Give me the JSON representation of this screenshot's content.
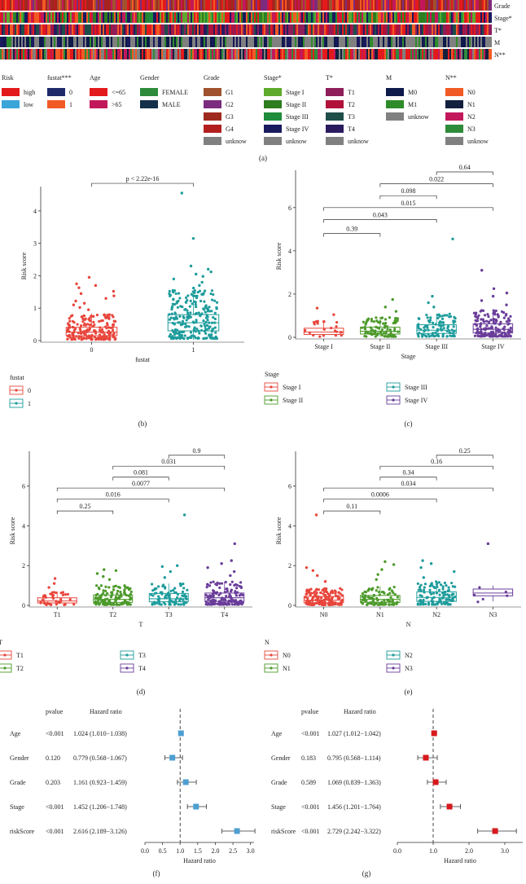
{
  "colors": {
    "grid": "#333333",
    "red": "#E8463C",
    "green": "#4C9A2A",
    "teal": "#1F9C9C",
    "purple": "#6A3D9A",
    "forest_blue": "#4E9FD1",
    "forest_red": "#D7191C"
  },
  "panel_a": {
    "label": "(a)",
    "tracks": [
      "Grade",
      "Stage*",
      "T*",
      "M",
      "N**"
    ],
    "legend": [
      {
        "title": "Risk",
        "items": [
          {
            "label": "high",
            "color": "#E31A1C"
          },
          {
            "label": "low",
            "color": "#3AA5D8"
          }
        ]
      },
      {
        "title": "fustat***",
        "items": [
          {
            "label": "0",
            "color": "#1F2A6B"
          },
          {
            "label": "1",
            "color": "#F15A24"
          }
        ]
      },
      {
        "title": "Age",
        "items": [
          {
            "label": "<=65",
            "color": "#E31A1C"
          },
          {
            "label": ">65",
            "color": "#C2185B"
          }
        ]
      },
      {
        "title": "Gender",
        "items": [
          {
            "label": "FEMALE",
            "color": "#2E8B3A"
          },
          {
            "label": "MALE",
            "color": "#14304A"
          }
        ]
      },
      {
        "title": "Grade",
        "items": [
          {
            "label": "G1",
            "color": "#A0522D"
          },
          {
            "label": "G2",
            "color": "#7B2C7E"
          },
          {
            "label": "G3",
            "color": "#9E2A1E"
          },
          {
            "label": "G4",
            "color": "#B21E1E"
          },
          {
            "label": "unknow",
            "color": "#808080"
          }
        ]
      },
      {
        "title": "Stage*",
        "items": [
          {
            "label": "Stage I",
            "color": "#5DAA2C"
          },
          {
            "label": "Stage II",
            "color": "#2E7D1E"
          },
          {
            "label": "Stage III",
            "color": "#1E8C3A"
          },
          {
            "label": "Stage IV",
            "color": "#1A1A5E"
          },
          {
            "label": "unknow",
            "color": "#808080"
          }
        ]
      },
      {
        "title": "T*",
        "items": [
          {
            "label": "T1",
            "color": "#8E1E5A"
          },
          {
            "label": "T2",
            "color": "#B0123A"
          },
          {
            "label": "T3",
            "color": "#1E4E4A"
          },
          {
            "label": "T4",
            "color": "#2A1A5E"
          },
          {
            "label": "unknow",
            "color": "#808080"
          }
        ]
      },
      {
        "title": "M",
        "items": [
          {
            "label": "M0",
            "color": "#0E1A4A"
          },
          {
            "label": "M1",
            "color": "#2E8B2A"
          },
          {
            "label": "unknow",
            "color": "#808080"
          }
        ]
      },
      {
        "title": "N**",
        "items": [
          {
            "label": "N0",
            "color": "#F15A24"
          },
          {
            "label": "N1",
            "color": "#12203E"
          },
          {
            "label": "N2",
            "color": "#C2185B"
          },
          {
            "label": "N3",
            "color": "#2E8B3A"
          },
          {
            "label": "unknow",
            "color": "#808080"
          }
        ]
      }
    ]
  },
  "chart_data": [
    {
      "panel": "(b)",
      "type": "box",
      "xlabel": "fustat",
      "ylabel": "Risk score",
      "ylim": [
        0,
        4.6
      ],
      "yticks": [
        0,
        1,
        2,
        3,
        4
      ],
      "categories": [
        "0",
        "1"
      ],
      "colors": [
        "#E8463C",
        "#1F9C9C"
      ],
      "box_stats": [
        {
          "min": 0.02,
          "q1": 0.15,
          "median": 0.26,
          "q3": 0.41,
          "max": 0.83
        },
        {
          "min": 0.02,
          "q1": 0.3,
          "median": 0.55,
          "q3": 0.8,
          "max": 1.55
        }
      ],
      "outliers": [
        [
          0.95,
          1.02,
          1.1,
          1.15,
          1.22,
          1.3,
          1.38,
          1.45,
          1.52,
          1.63,
          1.7,
          1.75,
          1.95
        ],
        [
          1.62,
          1.7,
          1.8,
          1.9,
          1.98,
          2.05,
          2.12,
          2.2,
          2.3,
          3.15,
          4.55
        ]
      ],
      "n_points": [
        200,
        240
      ],
      "comparisons": [
        {
          "from": 0,
          "to": 1,
          "label": "p < 2.22e-16",
          "y": 4.85
        }
      ],
      "legend_title": "fustat",
      "legend": [
        "0",
        "1"
      ]
    },
    {
      "panel": "(c)",
      "type": "box",
      "xlabel": "Stage",
      "ylabel": "Risk score",
      "ylim": [
        0,
        7.5
      ],
      "yticks": [
        0,
        2,
        4,
        6
      ],
      "categories": [
        "Stage I",
        "Stage II",
        "Stage III",
        "Stage IV"
      ],
      "colors": [
        "#E8463C",
        "#4C9A2A",
        "#1F9C9C",
        "#6A3D9A"
      ],
      "box_stats": [
        {
          "min": 0.02,
          "q1": 0.13,
          "median": 0.24,
          "q3": 0.42,
          "max": 0.75
        },
        {
          "min": 0.02,
          "q1": 0.15,
          "median": 0.28,
          "q3": 0.47,
          "max": 0.95
        },
        {
          "min": 0.02,
          "q1": 0.18,
          "median": 0.33,
          "q3": 0.58,
          "max": 1.1
        },
        {
          "min": 0.02,
          "q1": 0.2,
          "median": 0.37,
          "q3": 0.62,
          "max": 1.25
        }
      ],
      "outliers": [
        [
          1.05,
          1.35
        ],
        [
          1.2,
          1.4,
          1.75
        ],
        [
          1.4,
          1.6,
          1.9,
          4.55
        ],
        [
          1.5,
          1.7,
          1.9,
          2.05,
          2.25,
          3.1
        ]
      ],
      "n_points": [
        22,
        90,
        100,
        150
      ],
      "comparisons": [
        {
          "from": 0,
          "to": 1,
          "label": "0.39",
          "y": 4.8
        },
        {
          "from": 0,
          "to": 2,
          "label": "0.043",
          "y": 5.45
        },
        {
          "from": 0,
          "to": 3,
          "label": "0.015",
          "y": 6.0
        },
        {
          "from": 1,
          "to": 2,
          "label": "0.098",
          "y": 6.55
        },
        {
          "from": 1,
          "to": 3,
          "label": "0.022",
          "y": 7.1
        },
        {
          "from": 2,
          "to": 3,
          "label": "0.64",
          "y": 7.65
        }
      ],
      "legend_title": "Stage",
      "legend": [
        "Stage I",
        "Stage II",
        "Stage III",
        "Stage IV"
      ]
    },
    {
      "panel": "(d)",
      "type": "box",
      "xlabel": "T",
      "ylabel": "Risk score",
      "ylim": [
        0,
        7.5
      ],
      "yticks": [
        0,
        2,
        4,
        6
      ],
      "categories": [
        "T1",
        "T2",
        "T3",
        "T4"
      ],
      "colors": [
        "#E8463C",
        "#4C9A2A",
        "#1F9C9C",
        "#6A3D9A"
      ],
      "box_stats": [
        {
          "min": 0.02,
          "q1": 0.12,
          "median": 0.22,
          "q3": 0.38,
          "max": 0.7
        },
        {
          "min": 0.02,
          "q1": 0.15,
          "median": 0.3,
          "q3": 0.52,
          "max": 1.0
        },
        {
          "min": 0.02,
          "q1": 0.18,
          "median": 0.33,
          "q3": 0.6,
          "max": 1.1
        },
        {
          "min": 0.02,
          "q1": 0.2,
          "median": 0.38,
          "q3": 0.62,
          "max": 1.2
        }
      ],
      "outliers": [
        [
          0.9,
          1.1,
          1.35
        ],
        [
          1.3,
          1.45,
          1.6,
          1.75,
          1.8
        ],
        [
          1.4,
          1.7,
          1.95,
          2.0,
          4.55
        ],
        [
          1.5,
          1.7,
          1.9,
          2.1,
          2.25,
          3.1
        ]
      ],
      "n_points": [
        40,
        130,
        90,
        140
      ],
      "comparisons": [
        {
          "from": 0,
          "to": 1,
          "label": "0.25",
          "y": 4.75
        },
        {
          "from": 0,
          "to": 2,
          "label": "0.016",
          "y": 5.35
        },
        {
          "from": 0,
          "to": 3,
          "label": "0.0077",
          "y": 5.9
        },
        {
          "from": 1,
          "to": 2,
          "label": "0.081",
          "y": 6.45
        },
        {
          "from": 1,
          "to": 3,
          "label": "0.031",
          "y": 7.0
        },
        {
          "from": 2,
          "to": 3,
          "label": "0.9",
          "y": 7.55
        }
      ],
      "legend_title": "T",
      "legend": [
        "T1",
        "T2",
        "T3",
        "T4"
      ]
    },
    {
      "panel": "(e)",
      "type": "box",
      "xlabel": "N",
      "ylabel": "Risk score",
      "ylim": [
        0,
        7.5
      ],
      "yticks": [
        0,
        2,
        4,
        6
      ],
      "categories": [
        "N0",
        "N1",
        "N2",
        "N3"
      ],
      "colors": [
        "#E8463C",
        "#4C9A2A",
        "#1F9C9C",
        "#6A3D9A"
      ],
      "box_stats": [
        {
          "min": 0.02,
          "q1": 0.13,
          "median": 0.26,
          "q3": 0.45,
          "max": 0.85
        },
        {
          "min": 0.02,
          "q1": 0.15,
          "median": 0.3,
          "q3": 0.5,
          "max": 0.95
        },
        {
          "min": 0.02,
          "q1": 0.2,
          "median": 0.4,
          "q3": 0.68,
          "max": 1.2
        },
        {
          "min": 0.2,
          "q1": 0.48,
          "median": 0.62,
          "q3": 0.82,
          "max": 1.0
        }
      ],
      "outliers": [
        [
          1.2,
          1.5,
          1.75,
          1.9,
          4.55
        ],
        [
          1.3,
          1.55,
          1.8,
          2.05,
          2.2
        ],
        [
          1.4,
          1.7,
          1.9,
          2.1,
          2.25
        ],
        [
          3.1
        ]
      ],
      "n_points": [
        170,
        90,
        120,
        6
      ],
      "comparisons": [
        {
          "from": 0,
          "to": 1,
          "label": "0.11",
          "y": 4.75
        },
        {
          "from": 0,
          "to": 2,
          "label": "0.0006",
          "y": 5.35
        },
        {
          "from": 0,
          "to": 3,
          "label": "0.034",
          "y": 5.9
        },
        {
          "from": 1,
          "to": 2,
          "label": "0.34",
          "y": 6.45
        },
        {
          "from": 1,
          "to": 3,
          "label": "0.16",
          "y": 7.0
        },
        {
          "from": 2,
          "to": 3,
          "label": "0.25",
          "y": 7.55
        }
      ],
      "legend_title": "N",
      "legend": [
        "N0",
        "N1",
        "N2",
        "N3"
      ]
    },
    {
      "panel": "(f)",
      "type": "forest",
      "xlabel": "Hazard ratio",
      "xlim": [
        0,
        3.1
      ],
      "xticks": [
        "0.0",
        "0.5",
        "1.0",
        "1.5",
        "2.0",
        "2.5",
        "3.0"
      ],
      "ref_line": 1.0,
      "headers": [
        "pvalue",
        "Hazard ratio"
      ],
      "marker_color": "#4E9FD1",
      "rows": [
        {
          "label": "Age",
          "pvalue": "<0.001",
          "hr_text": "1.024 (1.010−1.038)",
          "hr": 1.024,
          "lo": 1.01,
          "hi": 1.038
        },
        {
          "label": "Gender",
          "pvalue": "0.120",
          "hr_text": "0.779 (0.568−1.067)",
          "hr": 0.779,
          "lo": 0.568,
          "hi": 1.067
        },
        {
          "label": "Grade",
          "pvalue": "0.203",
          "hr_text": "1.161 (0.923−1.459)",
          "hr": 1.161,
          "lo": 0.923,
          "hi": 1.459
        },
        {
          "label": "Stage",
          "pvalue": "<0.001",
          "hr_text": "1.452 (1.206−1.748)",
          "hr": 1.452,
          "lo": 1.206,
          "hi": 1.748
        },
        {
          "label": "riskScore",
          "pvalue": "<0.001",
          "hr_text": "2.616 (2.189−3.126)",
          "hr": 2.616,
          "lo": 2.189,
          "hi": 3.126
        }
      ]
    },
    {
      "panel": "(g)",
      "type": "forest",
      "xlabel": "Hazard ratio",
      "xlim": [
        0,
        3.5
      ],
      "xticks": [
        "0.0",
        "1.0",
        "2.0",
        "3.0"
      ],
      "ref_line": 1.0,
      "headers": [
        "pvalue",
        "Hazard ratio"
      ],
      "marker_color": "#D7191C",
      "rows": [
        {
          "label": "Age",
          "pvalue": "<0.001",
          "hr_text": "1.027 (1.012−1.042)",
          "hr": 1.027,
          "lo": 1.012,
          "hi": 1.042
        },
        {
          "label": "Gender",
          "pvalue": "0.183",
          "hr_text": "0.795 (0.568−1.114)",
          "hr": 0.795,
          "lo": 0.568,
          "hi": 1.114
        },
        {
          "label": "Grade",
          "pvalue": "0.589",
          "hr_text": "1.069 (0.839−1.363)",
          "hr": 1.069,
          "lo": 0.839,
          "hi": 1.363
        },
        {
          "label": "Stage",
          "pvalue": "<0.001",
          "hr_text": "1.456 (1.201−1.764)",
          "hr": 1.456,
          "lo": 1.201,
          "hi": 1.764
        },
        {
          "label": "riskScore",
          "pvalue": "<0.001",
          "hr_text": "2.729 (2.242−3.322)",
          "hr": 2.729,
          "lo": 2.242,
          "hi": 3.322
        }
      ]
    }
  ]
}
